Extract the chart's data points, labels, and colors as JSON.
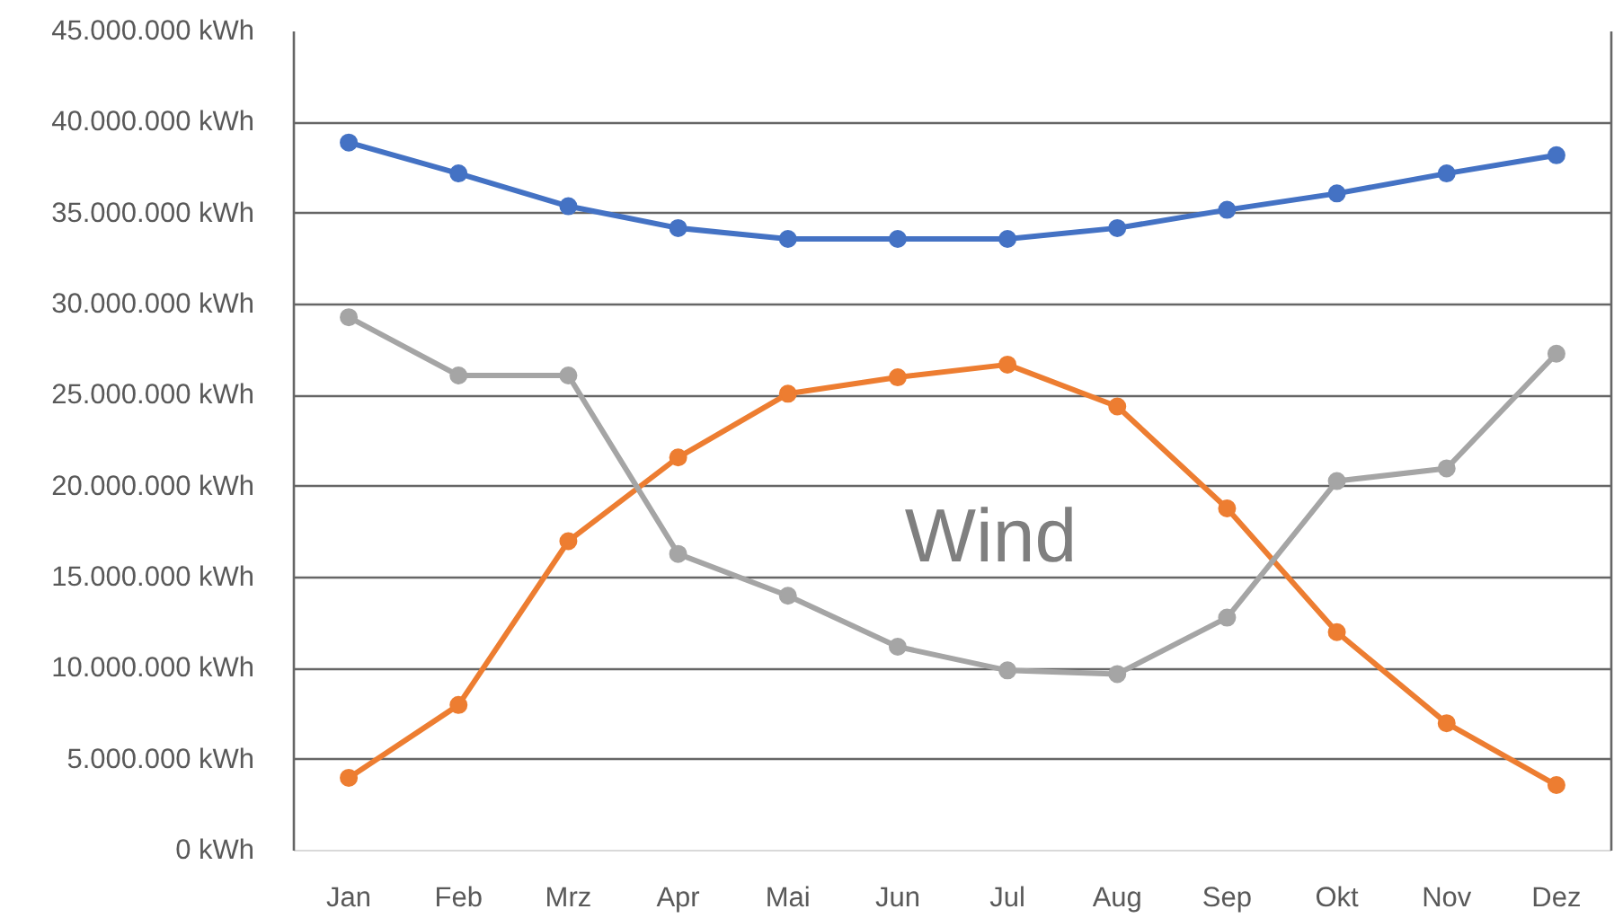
{
  "chart_data": {
    "type": "line",
    "title": "Wind",
    "categories": [
      "Jan",
      "Feb",
      "Mrz",
      "Apr",
      "Mai",
      "Jun",
      "Jul",
      "Aug",
      "Sep",
      "Okt",
      "Nov",
      "Dez"
    ],
    "series": [
      {
        "color": "#4472c4",
        "values": [
          38900000,
          37200000,
          35400000,
          34200000,
          33600000,
          33600000,
          33600000,
          34200000,
          35200000,
          36100000,
          37200000,
          38200000
        ]
      },
      {
        "color": "#ed7d31",
        "values": [
          4000000,
          8000000,
          17000000,
          21600000,
          25100000,
          26000000,
          26700000,
          24400000,
          18800000,
          12000000,
          7000000,
          3600000
        ]
      },
      {
        "color": "#a5a5a5",
        "values": [
          29300000,
          26100000,
          26100000,
          16300000,
          14000000,
          11200000,
          9900000,
          9700000,
          12800000,
          20300000,
          21000000,
          27300000
        ]
      }
    ],
    "ylim": [
      0,
      45000000
    ],
    "yticks": [
      {
        "value": 0,
        "label": "0 kWh"
      },
      {
        "value": 5000000,
        "label": "5.000.000 kWh"
      },
      {
        "value": 10000000,
        "label": "10.000.000 kWh"
      },
      {
        "value": 15000000,
        "label": "15.000.000 kWh"
      },
      {
        "value": 20000000,
        "label": "20.000.000 kWh"
      },
      {
        "value": 25000000,
        "label": "25.000.000 kWh"
      },
      {
        "value": 30000000,
        "label": "30.000.000 kWh"
      },
      {
        "value": 35000000,
        "label": "35.000.000 kWh"
      },
      {
        "value": 40000000,
        "label": "40.000.000 kWh"
      },
      {
        "value": 45000000,
        "label": "45.000.000 kWh"
      }
    ],
    "grid": "y",
    "marker": "circle",
    "line_style": "solid"
  }
}
